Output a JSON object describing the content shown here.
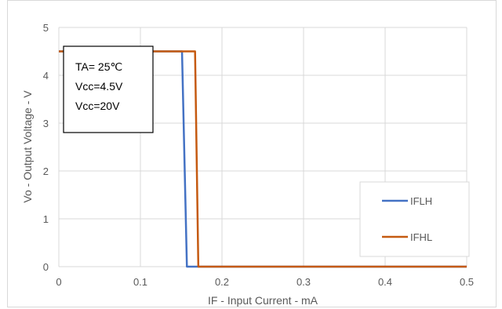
{
  "chart_data": {
    "type": "line",
    "xlabel": "IF - Input Current - mA",
    "ylabel": "Vo - Output Voltage - V",
    "xlim": [
      0,
      0.5
    ],
    "ylim": [
      0,
      5
    ],
    "x_ticks": [
      "0",
      "0.1",
      "0.2",
      "0.3",
      "0.4",
      "0.5"
    ],
    "y_ticks": [
      "0",
      "1",
      "2",
      "3",
      "4",
      "5"
    ],
    "grid": true,
    "legend_position": "bottom-right",
    "annotation": [
      "TA= 25℃",
      "Vcc=4.5V",
      "Vcc=20V"
    ],
    "series": [
      {
        "name": "IFLH",
        "color": "#4472c4",
        "points": [
          [
            0,
            4.5
          ],
          [
            0.151,
            4.5
          ],
          [
            0.157,
            0
          ],
          [
            0.5,
            0
          ]
        ]
      },
      {
        "name": "IFHL",
        "color": "#c55a11",
        "points": [
          [
            0,
            4.5
          ],
          [
            0.167,
            4.5
          ],
          [
            0.171,
            0
          ],
          [
            0.5,
            0
          ]
        ]
      }
    ]
  }
}
